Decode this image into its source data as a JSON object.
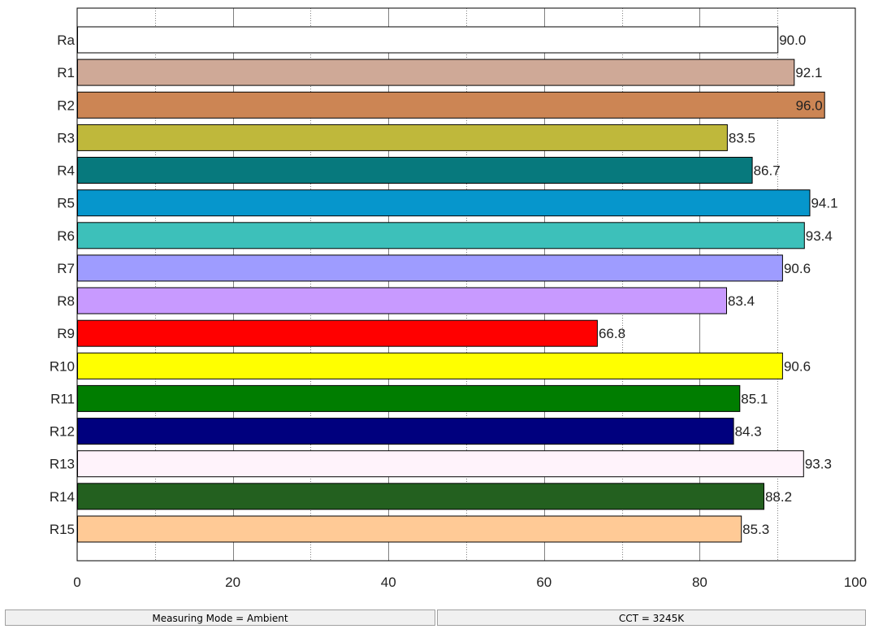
{
  "chart_data": {
    "type": "bar",
    "orientation": "horizontal",
    "categories": [
      "Ra",
      "R1",
      "R2",
      "R3",
      "R4",
      "R5",
      "R6",
      "R7",
      "R8",
      "R9",
      "R10",
      "R11",
      "R12",
      "R13",
      "R14",
      "R15"
    ],
    "values": [
      90.0,
      92.1,
      96.0,
      83.5,
      86.7,
      94.1,
      93.4,
      90.6,
      83.4,
      66.8,
      90.6,
      85.1,
      84.3,
      93.3,
      88.2,
      85.3
    ],
    "value_labels": [
      "90.0",
      "92.1",
      "96.0",
      "83.5",
      "86.7",
      "94.1",
      "93.4",
      "90.6",
      "83.4",
      "66.8",
      "90.6",
      "85.1",
      "84.3",
      "93.3",
      "88.2",
      "85.3"
    ],
    "colors": [
      "#ffffff",
      "#cfa997",
      "#cc8554",
      "#bfb83b",
      "#07797d",
      "#0696cc",
      "#3dc0ba",
      "#9e9cff",
      "#c89aff",
      "#ff0000",
      "#ffff00",
      "#007d00",
      "#00007e",
      "#fff3fb",
      "#23601f",
      "#ffca96"
    ],
    "x_ticks": [
      0,
      20,
      40,
      60,
      80,
      100
    ],
    "x_tick_labels": [
      "0",
      "20",
      "40",
      "60",
      "80",
      "100"
    ],
    "xlim": [
      0,
      100
    ],
    "grid": true,
    "title": "",
    "xlabel": "",
    "ylabel": ""
  },
  "status": {
    "mode": "Measuring Mode = Ambient",
    "cct": "CCT = 3245K"
  }
}
